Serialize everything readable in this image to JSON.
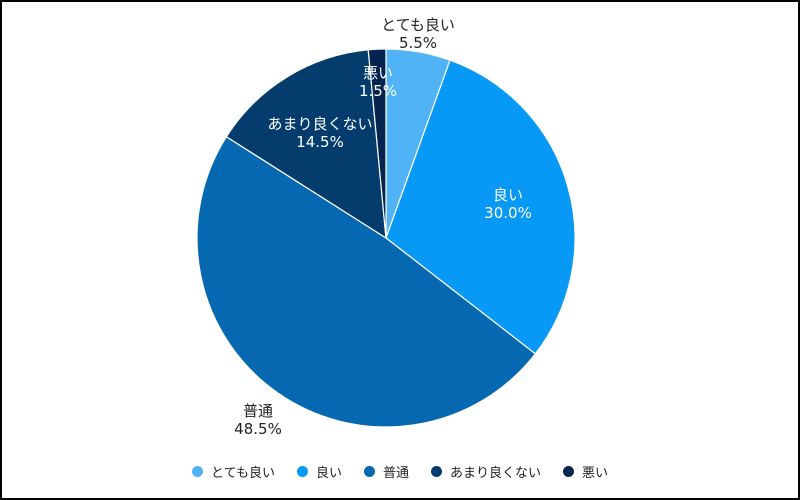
{
  "chart_data": {
    "type": "pie",
    "title": "",
    "legend_position": "bottom",
    "slices": [
      {
        "label": "とても良い",
        "value": 5.5,
        "value_text": "5.5%",
        "color": "#4fb3f5"
      },
      {
        "label": "良い",
        "value": 30.0,
        "value_text": "30.0%",
        "color": "#0898f5"
      },
      {
        "label": "普通",
        "value": 48.5,
        "value_text": "48.5%",
        "color": "#0668b0"
      },
      {
        "label": "あまり良くない",
        "value": 14.5,
        "value_text": "14.5%",
        "color": "#053c6e"
      },
      {
        "label": "悪い",
        "value": 1.5,
        "value_text": "1.5%",
        "color": "#052550"
      }
    ]
  }
}
